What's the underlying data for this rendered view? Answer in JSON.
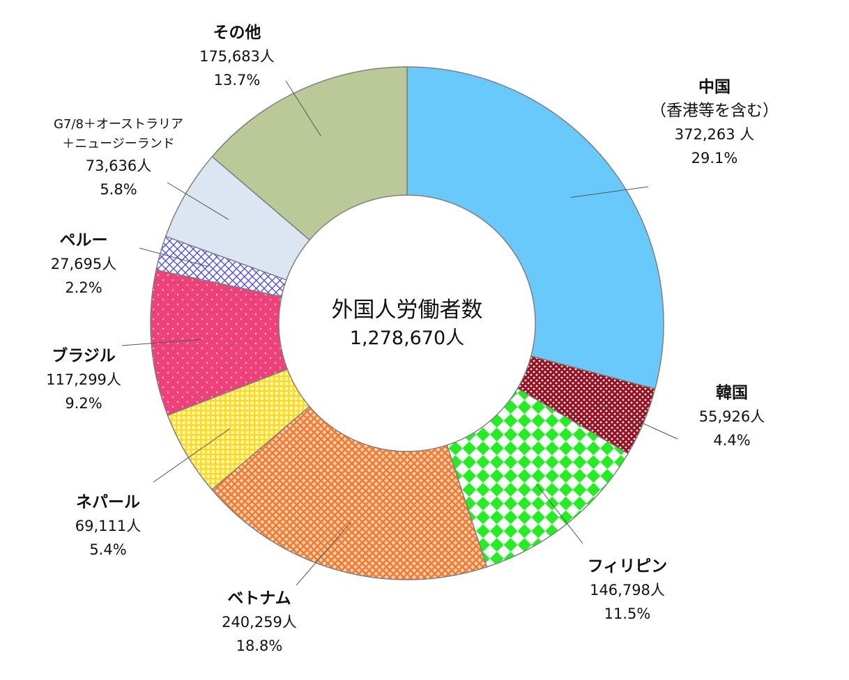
{
  "center": {
    "title": "外国人労働者数",
    "total": "1,278,670人"
  },
  "chart_data": {
    "type": "pie",
    "total": 1278670,
    "slices": [
      {
        "name": "中国",
        "name_line2": "（香港等を含む）",
        "count": "372,263 人",
        "value": 372263,
        "percent": "29.1%",
        "color": "#69c9fb",
        "pattern": "solid"
      },
      {
        "name": "韓国",
        "count": "55,926人",
        "value": 55926,
        "percent": "4.4%",
        "color": "#9b1020",
        "pattern": "dots"
      },
      {
        "name": "フィリピン",
        "count": "146,798人",
        "value": 146798,
        "percent": "11.5%",
        "color": "#22ee22",
        "pattern": "checker"
      },
      {
        "name": "ベトナム",
        "count": "240,259人",
        "value": 240259,
        "percent": "18.8%",
        "color": "#f07a30",
        "pattern": "diagonal-grid"
      },
      {
        "name": "ネパール",
        "count": "69,111人",
        "value": 69111,
        "percent": "5.4%",
        "color": "#ffe02a",
        "pattern": "grid"
      },
      {
        "name": "ブラジル",
        "count": "117,299人",
        "value": 117299,
        "percent": "9.2%",
        "color": "#f0407a",
        "pattern": "sparse-dots"
      },
      {
        "name": "ペルー",
        "count": "27,695人",
        "value": 27695,
        "percent": "2.2%",
        "color": "#5050e0",
        "pattern": "crosshatch"
      },
      {
        "name": "G7/8＋オーストラリア",
        "name_line2": "＋ニュージーランド",
        "count": "73,636人",
        "value": 73636,
        "percent": "5.8%",
        "color": "#dce6f2",
        "pattern": "solid"
      },
      {
        "name": "その他",
        "count": "175,683人",
        "value": 175683,
        "percent": "13.7%",
        "color": "#bbc998",
        "pattern": "solid"
      }
    ]
  }
}
